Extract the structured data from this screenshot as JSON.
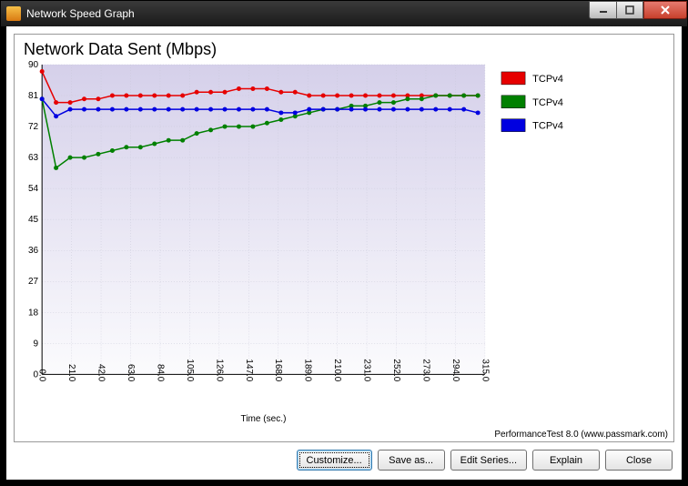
{
  "window": {
    "title": "Network Speed Graph"
  },
  "chart": {
    "type": "line",
    "title": "Network Data Sent (Mbps)",
    "xlabel": "Time (sec.)",
    "ylim": [
      0,
      90
    ],
    "ytick_step": 9,
    "yticks": [
      0,
      9,
      18,
      27,
      36,
      45,
      54,
      63,
      72,
      81,
      90
    ],
    "xlim": [
      0,
      315
    ],
    "xtick_step": 21,
    "xticks": [
      0,
      21,
      42,
      63,
      84,
      105,
      126,
      147,
      168,
      189,
      210,
      231,
      252,
      273,
      294,
      315
    ],
    "background_top": "#d5d0ea",
    "background_bottom": "#fbfbfd",
    "grid_color": "#c8c8d8",
    "axis_color": "#000000",
    "marker": "circle",
    "marker_size": 3,
    "line_width": 1.5,
    "series": [
      {
        "label": "TCPv4",
        "color": "#e60000",
        "x": [
          0,
          10,
          20,
          30,
          40,
          50,
          60,
          70,
          80,
          90,
          100,
          110,
          120,
          130,
          140,
          150,
          160,
          170,
          180,
          190,
          200,
          210,
          220,
          230,
          240,
          250,
          260,
          270,
          280,
          290,
          300,
          310
        ],
        "y": [
          88,
          79,
          79,
          80,
          80,
          81,
          81,
          81,
          81,
          81,
          81,
          82,
          82,
          82,
          83,
          83,
          83,
          82,
          82,
          81,
          81,
          81,
          81,
          81,
          81,
          81,
          81,
          81,
          81,
          81,
          81,
          81
        ]
      },
      {
        "label": "TCPv4",
        "color": "#008000",
        "x": [
          0,
          10,
          20,
          30,
          40,
          50,
          60,
          70,
          80,
          90,
          100,
          110,
          120,
          130,
          140,
          150,
          160,
          170,
          180,
          190,
          200,
          210,
          220,
          230,
          240,
          250,
          260,
          270,
          280,
          290,
          300,
          310
        ],
        "y": [
          80,
          60,
          63,
          63,
          64,
          65,
          66,
          66,
          67,
          68,
          68,
          70,
          71,
          72,
          72,
          72,
          73,
          74,
          75,
          76,
          77,
          77,
          78,
          78,
          79,
          79,
          80,
          80,
          81,
          81,
          81,
          81
        ]
      },
      {
        "label": "TCPv4",
        "color": "#0000e0",
        "x": [
          0,
          10,
          20,
          30,
          40,
          50,
          60,
          70,
          80,
          90,
          100,
          110,
          120,
          130,
          140,
          150,
          160,
          170,
          180,
          190,
          200,
          210,
          220,
          230,
          240,
          250,
          260,
          270,
          280,
          290,
          300,
          310
        ],
        "y": [
          80,
          75,
          77,
          77,
          77,
          77,
          77,
          77,
          77,
          77,
          77,
          77,
          77,
          77,
          77,
          77,
          77,
          76,
          76,
          77,
          77,
          77,
          77,
          77,
          77,
          77,
          77,
          77,
          77,
          77,
          77,
          76
        ]
      }
    ]
  },
  "footer": "PerformanceTest 8.0 (www.passmark.com)",
  "buttons": {
    "customize": "Customize...",
    "saveas": "Save as...",
    "editseries": "Edit Series...",
    "explain": "Explain",
    "close": "Close"
  }
}
